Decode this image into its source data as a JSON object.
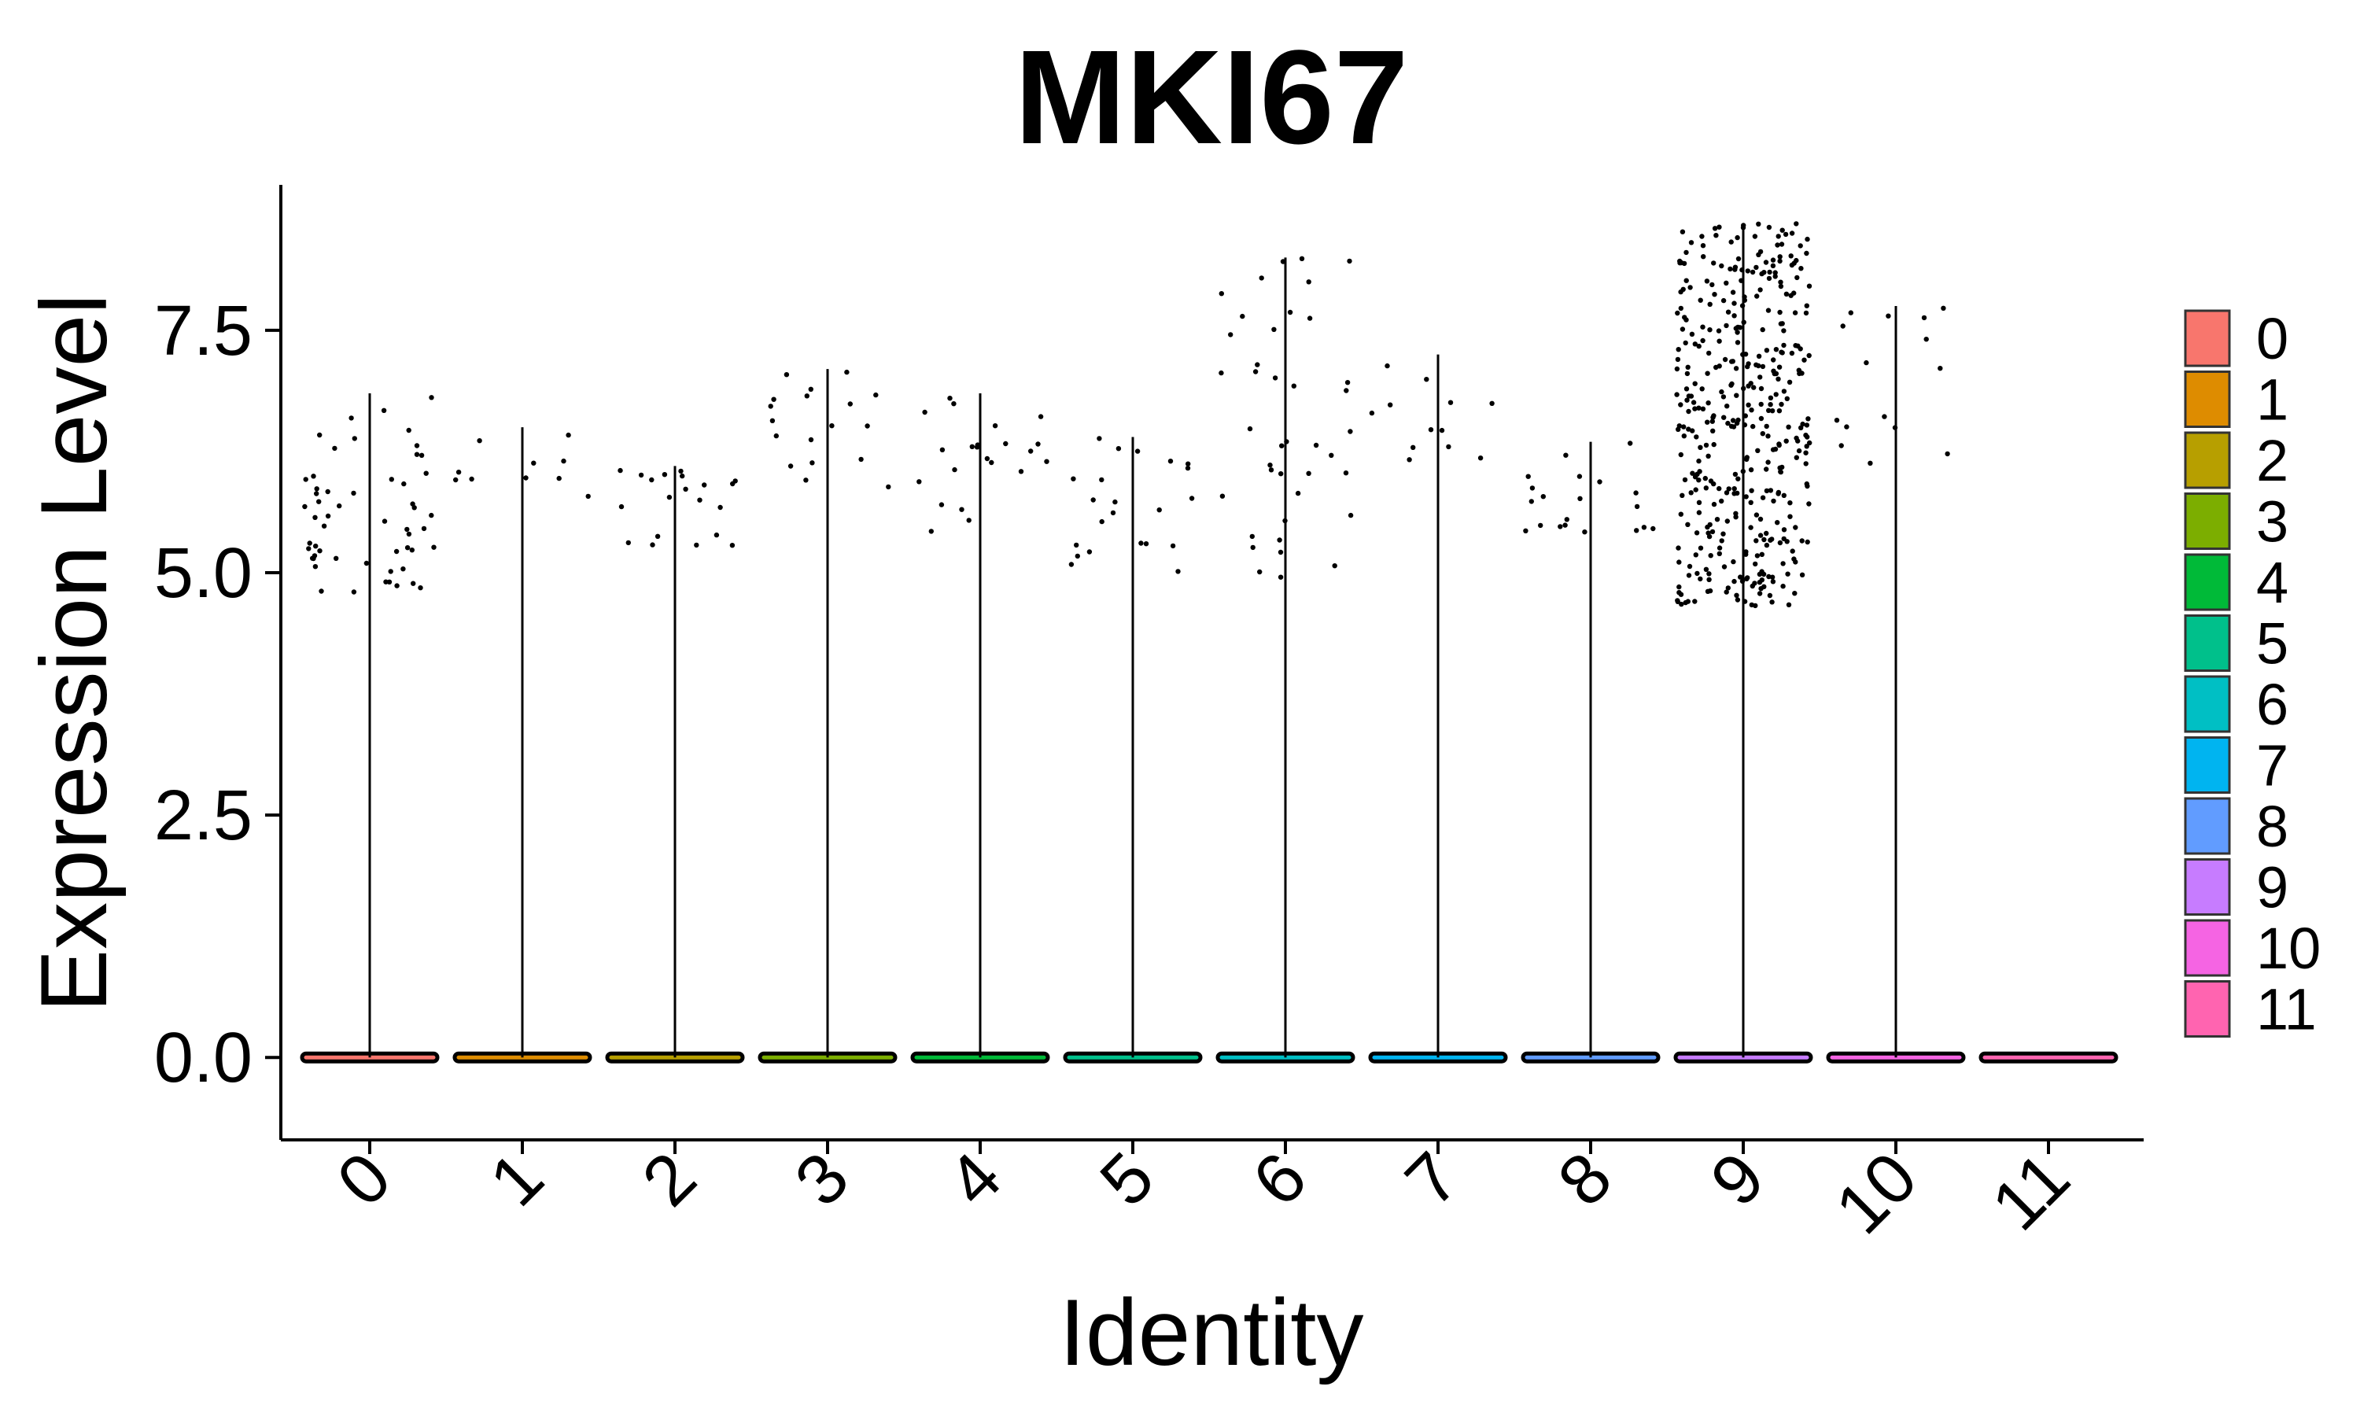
{
  "chart_data": {
    "type": "violin",
    "title": "MKI67",
    "xlabel": "Identity",
    "ylabel": "Expression Level",
    "ylim": [
      -0.85,
      9.0
    ],
    "yticks": [
      0.0,
      2.5,
      5.0,
      7.5
    ],
    "ytick_labels": [
      "0.0",
      "2.5",
      "5.0",
      "7.5"
    ],
    "categories": [
      "0",
      "1",
      "2",
      "3",
      "4",
      "5",
      "6",
      "7",
      "8",
      "9",
      "10",
      "11"
    ],
    "max_values": [
      6.85,
      6.5,
      6.1,
      7.1,
      6.85,
      6.4,
      8.25,
      7.25,
      6.35,
      8.6,
      7.75,
      0.0
    ],
    "expressing_cells": [
      55,
      10,
      20,
      18,
      22,
      22,
      40,
      12,
      20,
      400,
      15,
      0
    ],
    "expressing_range": [
      [
        4.8,
        6.85
      ],
      [
        5.5,
        6.5
      ],
      [
        5.2,
        6.1
      ],
      [
        5.8,
        7.1
      ],
      [
        5.35,
        6.85
      ],
      [
        4.8,
        6.4
      ],
      [
        4.95,
        8.25
      ],
      [
        5.95,
        7.25
      ],
      [
        5.4,
        6.35
      ],
      [
        4.65,
        8.6
      ],
      [
        6.1,
        7.75
      ],
      [
        0.0,
        0.0
      ]
    ],
    "baseline": 0.0,
    "legend": {
      "position": "right",
      "entries": [
        {
          "name": "0",
          "color": "#F8766D"
        },
        {
          "name": "1",
          "color": "#DE8C00"
        },
        {
          "name": "2",
          "color": "#B79F00"
        },
        {
          "name": "3",
          "color": "#7CAE00"
        },
        {
          "name": "4",
          "color": "#00BA38"
        },
        {
          "name": "5",
          "color": "#00C08B"
        },
        {
          "name": "6",
          "color": "#00BFC4"
        },
        {
          "name": "7",
          "color": "#00B4F0"
        },
        {
          "name": "8",
          "color": "#619CFF"
        },
        {
          "name": "9",
          "color": "#C77CFF"
        },
        {
          "name": "10",
          "color": "#F564E3"
        },
        {
          "name": "11",
          "color": "#FF64B0"
        }
      ]
    },
    "grid": false
  }
}
